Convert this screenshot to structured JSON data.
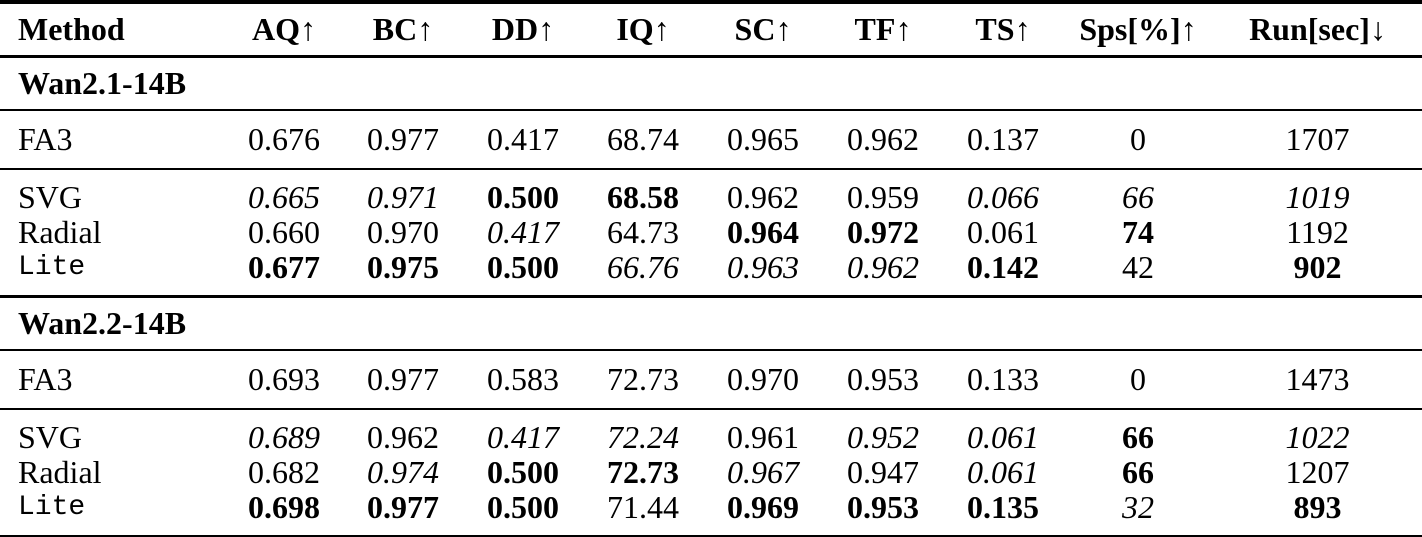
{
  "table": {
    "columns": [
      {
        "name": "Method",
        "arrow": ""
      },
      {
        "name": "AQ",
        "arrow": "↑"
      },
      {
        "name": "BC",
        "arrow": "↑"
      },
      {
        "name": "DD",
        "arrow": "↑"
      },
      {
        "name": "IQ",
        "arrow": "↑"
      },
      {
        "name": "SC",
        "arrow": "↑"
      },
      {
        "name": "TF",
        "arrow": "↑"
      },
      {
        "name": "TS",
        "arrow": "↑"
      },
      {
        "name": "Sps[%]",
        "arrow": "↑"
      },
      {
        "name": "Run[sec]",
        "arrow": "↓"
      }
    ],
    "style_legend": {
      "b": "bold",
      "i": "italic",
      "n": "normal"
    },
    "sections": [
      {
        "title": "Wan2.1-14B",
        "rows": [
          {
            "method": "FA3",
            "mono": false,
            "kind": "baseline",
            "cells": [
              {
                "v": "0.676",
                "s": "n"
              },
              {
                "v": "0.977",
                "s": "n"
              },
              {
                "v": "0.417",
                "s": "n"
              },
              {
                "v": "68.74",
                "s": "n"
              },
              {
                "v": "0.965",
                "s": "n"
              },
              {
                "v": "0.962",
                "s": "n"
              },
              {
                "v": "0.137",
                "s": "n"
              },
              {
                "v": "0",
                "s": "n"
              },
              {
                "v": "1707",
                "s": "n"
              }
            ]
          },
          {
            "method": "SVG",
            "mono": false,
            "kind": "first",
            "cells": [
              {
                "v": "0.665",
                "s": "i"
              },
              {
                "v": "0.971",
                "s": "i"
              },
              {
                "v": "0.500",
                "s": "b"
              },
              {
                "v": "68.58",
                "s": "b"
              },
              {
                "v": "0.962",
                "s": "n"
              },
              {
                "v": "0.959",
                "s": "n"
              },
              {
                "v": "0.066",
                "s": "i"
              },
              {
                "v": "66",
                "s": "i"
              },
              {
                "v": "1019",
                "s": "i"
              }
            ]
          },
          {
            "method": "Radial",
            "mono": false,
            "kind": "mid",
            "cells": [
              {
                "v": "0.660",
                "s": "n"
              },
              {
                "v": "0.970",
                "s": "n"
              },
              {
                "v": "0.417",
                "s": "i"
              },
              {
                "v": "64.73",
                "s": "n"
              },
              {
                "v": "0.964",
                "s": "b"
              },
              {
                "v": "0.972",
                "s": "b"
              },
              {
                "v": "0.061",
                "s": "n"
              },
              {
                "v": "74",
                "s": "b"
              },
              {
                "v": "1192",
                "s": "n"
              }
            ]
          },
          {
            "method": "Lite",
            "mono": true,
            "kind": "last",
            "cells": [
              {
                "v": "0.677",
                "s": "b"
              },
              {
                "v": "0.975",
                "s": "b"
              },
              {
                "v": "0.500",
                "s": "b"
              },
              {
                "v": "66.76",
                "s": "i"
              },
              {
                "v": "0.963",
                "s": "i"
              },
              {
                "v": "0.962",
                "s": "i"
              },
              {
                "v": "0.142",
                "s": "b"
              },
              {
                "v": "42",
                "s": "n"
              },
              {
                "v": "902",
                "s": "b"
              }
            ]
          }
        ]
      },
      {
        "title": "Wan2.2-14B",
        "rows": [
          {
            "method": "FA3",
            "mono": false,
            "kind": "baseline",
            "cells": [
              {
                "v": "0.693",
                "s": "n"
              },
              {
                "v": "0.977",
                "s": "n"
              },
              {
                "v": "0.583",
                "s": "n"
              },
              {
                "v": "72.73",
                "s": "n"
              },
              {
                "v": "0.970",
                "s": "n"
              },
              {
                "v": "0.953",
                "s": "n"
              },
              {
                "v": "0.133",
                "s": "n"
              },
              {
                "v": "0",
                "s": "n"
              },
              {
                "v": "1473",
                "s": "n"
              }
            ]
          },
          {
            "method": "SVG",
            "mono": false,
            "kind": "first",
            "cells": [
              {
                "v": "0.689",
                "s": "i"
              },
              {
                "v": "0.962",
                "s": "n"
              },
              {
                "v": "0.417",
                "s": "i"
              },
              {
                "v": "72.24",
                "s": "i"
              },
              {
                "v": "0.961",
                "s": "n"
              },
              {
                "v": "0.952",
                "s": "i"
              },
              {
                "v": "0.061",
                "s": "i"
              },
              {
                "v": "66",
                "s": "b"
              },
              {
                "v": "1022",
                "s": "i"
              }
            ]
          },
          {
            "method": "Radial",
            "mono": false,
            "kind": "mid",
            "cells": [
              {
                "v": "0.682",
                "s": "n"
              },
              {
                "v": "0.974",
                "s": "i"
              },
              {
                "v": "0.500",
                "s": "b"
              },
              {
                "v": "72.73",
                "s": "b"
              },
              {
                "v": "0.967",
                "s": "i"
              },
              {
                "v": "0.947",
                "s": "n"
              },
              {
                "v": "0.061",
                "s": "i"
              },
              {
                "v": "66",
                "s": "b"
              },
              {
                "v": "1207",
                "s": "n"
              }
            ]
          },
          {
            "method": "Lite",
            "mono": true,
            "kind": "last",
            "cells": [
              {
                "v": "0.698",
                "s": "b"
              },
              {
                "v": "0.977",
                "s": "b"
              },
              {
                "v": "0.500",
                "s": "b"
              },
              {
                "v": "71.44",
                "s": "n"
              },
              {
                "v": "0.969",
                "s": "b"
              },
              {
                "v": "0.953",
                "s": "b"
              },
              {
                "v": "0.135",
                "s": "b"
              },
              {
                "v": "32",
                "s": "i"
              },
              {
                "v": "893",
                "s": "b"
              }
            ]
          }
        ]
      }
    ]
  }
}
